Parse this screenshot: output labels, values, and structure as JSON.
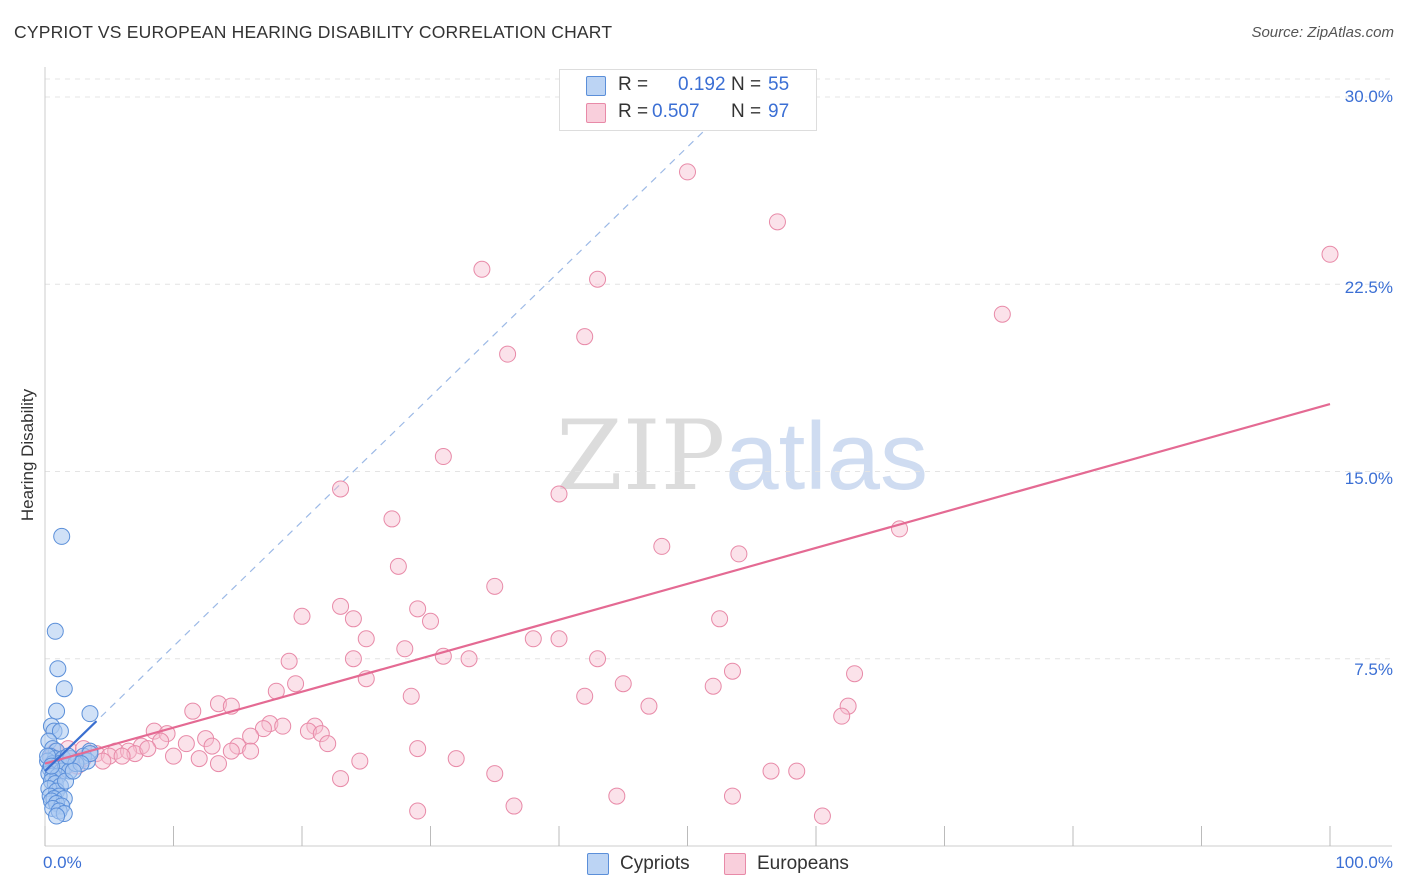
{
  "header": {
    "title": "CYPRIOT VS EUROPEAN HEARING DISABILITY CORRELATION CHART",
    "source": "Source: ZipAtlas.com"
  },
  "watermark": {
    "zip": "ZIP",
    "atlas": "atlas"
  },
  "legend": {
    "r_label": "R = ",
    "n_label": "N = ",
    "series": [
      {
        "r": "0.192",
        "n": "55"
      },
      {
        "r": "0.507",
        "n": "97"
      }
    ]
  },
  "bottom_legend": {
    "cypriots": "Cypriots",
    "europeans": "Europeans"
  },
  "colors": {
    "blue_fill": "#a9c8f0",
    "blue_stroke": "#5b8fd9",
    "blue_line": "#3a6fd0",
    "pink_fill": "#f7bfd0",
    "pink_stroke": "#e88aa8",
    "pink_line": "#e46a93",
    "tick_text": "#3b6fd4"
  },
  "chart_data": {
    "type": "scatter",
    "title": "CYPRIOT VS EUROPEAN HEARING DISABILITY CORRELATION CHART",
    "xlabel": "",
    "ylabel": "Hearing Disability",
    "xlim": [
      0,
      100
    ],
    "ylim": [
      0,
      30
    ],
    "x_tick_labels": [
      "0.0%",
      "100.0%"
    ],
    "y_ticks": [
      7.5,
      15.0,
      22.5,
      30.0
    ],
    "y_tick_labels": [
      "7.5%",
      "15.0%",
      "22.5%",
      "30.0%"
    ],
    "grid": true,
    "series": [
      {
        "name": "Cypriots",
        "r": 0.192,
        "n": 55,
        "trend_solid": [
          [
            0.0,
            3.0
          ],
          [
            4.0,
            5.0
          ]
        ],
        "trend_dashed": [
          [
            0.0,
            3.0
          ],
          [
            54.0,
            30.0
          ]
        ],
        "points": [
          [
            1.3,
            12.4
          ],
          [
            0.8,
            8.6
          ],
          [
            1.0,
            7.1
          ],
          [
            1.5,
            6.3
          ],
          [
            3.5,
            5.3
          ],
          [
            0.9,
            5.4
          ],
          [
            0.5,
            4.8
          ],
          [
            0.7,
            4.6
          ],
          [
            1.2,
            4.6
          ],
          [
            0.3,
            4.2
          ],
          [
            0.6,
            3.9
          ],
          [
            0.9,
            3.8
          ],
          [
            3.5,
            3.8
          ],
          [
            0.4,
            3.6
          ],
          [
            0.8,
            3.5
          ],
          [
            1.4,
            3.5
          ],
          [
            0.2,
            3.4
          ],
          [
            0.6,
            3.3
          ],
          [
            1.1,
            3.3
          ],
          [
            0.9,
            3.2
          ],
          [
            3.0,
            3.6
          ],
          [
            3.3,
            3.4
          ],
          [
            2.0,
            3.5
          ],
          [
            0.4,
            3.1
          ],
          [
            0.7,
            3.0
          ],
          [
            1.3,
            3.0
          ],
          [
            1.6,
            3.2
          ],
          [
            1.9,
            3.0
          ],
          [
            0.3,
            2.9
          ],
          [
            0.6,
            2.8
          ],
          [
            1.0,
            2.8
          ],
          [
            2.4,
            3.3
          ],
          [
            0.5,
            2.6
          ],
          [
            0.8,
            2.5
          ],
          [
            1.2,
            2.4
          ],
          [
            0.3,
            2.3
          ],
          [
            0.9,
            2.2
          ],
          [
            0.4,
            2.0
          ],
          [
            1.1,
            2.0
          ],
          [
            0.7,
            1.9
          ],
          [
            1.5,
            1.9
          ],
          [
            0.5,
            1.8
          ],
          [
            0.9,
            1.7
          ],
          [
            1.3,
            1.6
          ],
          [
            0.6,
            1.5
          ],
          [
            1.1,
            1.4
          ],
          [
            1.5,
            1.3
          ],
          [
            0.9,
            1.2
          ],
          [
            3.5,
            3.7
          ],
          [
            2.8,
            3.3
          ],
          [
            1.8,
            3.6
          ],
          [
            0.2,
            3.6
          ],
          [
            0.5,
            3.2
          ],
          [
            1.6,
            2.6
          ],
          [
            2.2,
            3.0
          ]
        ]
      },
      {
        "name": "Europeans",
        "r": 0.507,
        "n": 97,
        "trend_solid": [
          [
            0.0,
            3.3
          ],
          [
            100.0,
            17.7
          ]
        ],
        "points": [
          [
            50.0,
            27.0
          ],
          [
            57.0,
            25.0
          ],
          [
            100.0,
            23.7
          ],
          [
            34.0,
            23.1
          ],
          [
            43.0,
            22.7
          ],
          [
            74.5,
            21.3
          ],
          [
            42.0,
            20.4
          ],
          [
            36.0,
            19.7
          ],
          [
            31.0,
            15.6
          ],
          [
            23.0,
            14.3
          ],
          [
            40.0,
            14.1
          ],
          [
            27.0,
            13.1
          ],
          [
            66.5,
            12.7
          ],
          [
            48.0,
            12.0
          ],
          [
            54.0,
            11.7
          ],
          [
            27.5,
            11.2
          ],
          [
            35.0,
            10.4
          ],
          [
            23.0,
            9.6
          ],
          [
            20.0,
            9.2
          ],
          [
            24.0,
            9.1
          ],
          [
            29.0,
            9.5
          ],
          [
            30.0,
            9.0
          ],
          [
            52.5,
            9.1
          ],
          [
            25.0,
            8.3
          ],
          [
            38.0,
            8.3
          ],
          [
            40.0,
            8.3
          ],
          [
            28.0,
            7.9
          ],
          [
            19.0,
            7.4
          ],
          [
            24.0,
            7.5
          ],
          [
            31.0,
            7.6
          ],
          [
            33.0,
            7.5
          ],
          [
            43.0,
            7.5
          ],
          [
            53.5,
            7.0
          ],
          [
            63.0,
            6.9
          ],
          [
            25.0,
            6.7
          ],
          [
            45.0,
            6.5
          ],
          [
            52.0,
            6.4
          ],
          [
            18.0,
            6.2
          ],
          [
            19.5,
            6.5
          ],
          [
            28.5,
            6.0
          ],
          [
            42.0,
            6.0
          ],
          [
            13.5,
            5.7
          ],
          [
            14.5,
            5.6
          ],
          [
            47.0,
            5.6
          ],
          [
            62.5,
            5.6
          ],
          [
            11.5,
            5.4
          ],
          [
            62.0,
            5.2
          ],
          [
            17.5,
            4.9
          ],
          [
            18.5,
            4.8
          ],
          [
            21.0,
            4.8
          ],
          [
            8.5,
            4.6
          ],
          [
            17.0,
            4.7
          ],
          [
            20.5,
            4.6
          ],
          [
            21.5,
            4.5
          ],
          [
            9.5,
            4.5
          ],
          [
            12.5,
            4.3
          ],
          [
            16.0,
            4.4
          ],
          [
            9.0,
            4.2
          ],
          [
            11.0,
            4.1
          ],
          [
            13.0,
            4.0
          ],
          [
            15.0,
            4.0
          ],
          [
            22.0,
            4.1
          ],
          [
            7.5,
            4.0
          ],
          [
            5.5,
            3.8
          ],
          [
            6.5,
            3.8
          ],
          [
            7.0,
            3.7
          ],
          [
            8.0,
            3.9
          ],
          [
            4.0,
            3.7
          ],
          [
            5.0,
            3.6
          ],
          [
            6.0,
            3.6
          ],
          [
            10.0,
            3.6
          ],
          [
            14.5,
            3.8
          ],
          [
            16.0,
            3.8
          ],
          [
            3.0,
            3.5
          ],
          [
            4.5,
            3.4
          ],
          [
            12.0,
            3.5
          ],
          [
            2.0,
            3.4
          ],
          [
            1.0,
            3.3
          ],
          [
            13.5,
            3.3
          ],
          [
            2.5,
            3.2
          ],
          [
            1.5,
            3.1
          ],
          [
            0.5,
            3.6
          ],
          [
            0.8,
            3.8
          ],
          [
            1.8,
            3.9
          ],
          [
            3.0,
            3.9
          ],
          [
            29.0,
            3.9
          ],
          [
            24.5,
            3.4
          ],
          [
            32.0,
            3.5
          ],
          [
            23.0,
            2.7
          ],
          [
            35.0,
            2.9
          ],
          [
            56.5,
            3.0
          ],
          [
            58.5,
            3.0
          ],
          [
            44.5,
            2.0
          ],
          [
            53.5,
            2.0
          ],
          [
            36.5,
            1.6
          ],
          [
            29.0,
            1.4
          ],
          [
            60.5,
            1.2
          ]
        ]
      }
    ]
  }
}
